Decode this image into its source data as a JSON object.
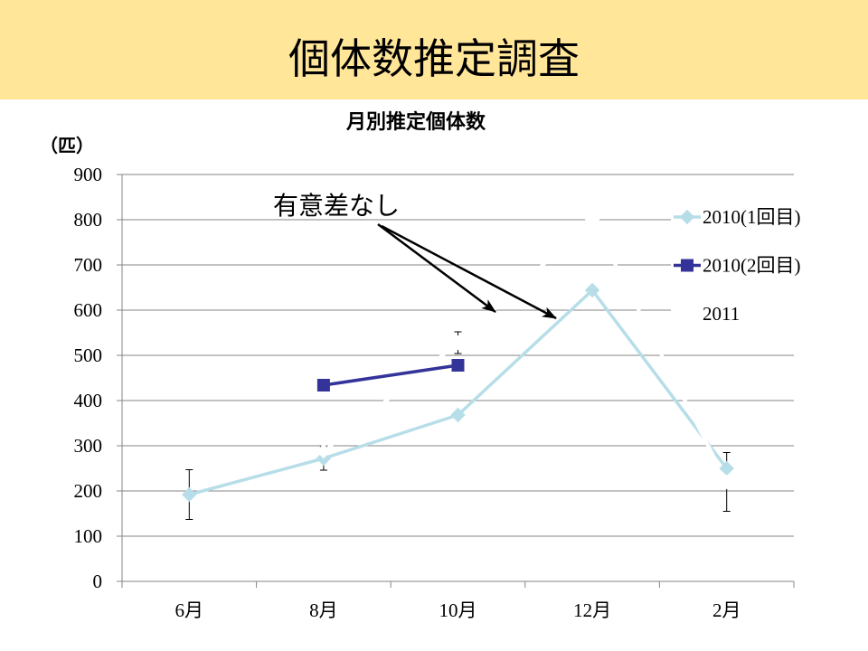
{
  "header": {
    "title": "個体数推定調査"
  },
  "annotation": {
    "text": "有意差なし"
  },
  "colors": {
    "header_bg": "#FFE699",
    "gridline": "#868686",
    "arrow": "#000000"
  },
  "chart_data": {
    "type": "line",
    "title": "月別推定個体数",
    "ylabel": "（匹）",
    "categories": [
      "6月",
      "8月",
      "10月",
      "12月",
      "2月"
    ],
    "ylim": [
      0,
      900
    ],
    "yticks": [
      "0",
      "100",
      "200",
      "300",
      "400",
      "500",
      "600",
      "700",
      "800",
      "900"
    ],
    "grid": true,
    "legend": "right",
    "series": [
      {
        "name": "2010(1回目)",
        "color": "#B7DEE8",
        "marker": "diamond",
        "values": [
          192,
          272,
          368,
          644,
          250
        ],
        "error": [
          55,
          26,
          null,
          null,
          null
        ]
      },
      {
        "name": "2010(2回目)",
        "color": "#333399",
        "marker": "square",
        "values": [
          null,
          434,
          478,
          null,
          null
        ],
        "error": [
          null,
          null,
          null,
          null,
          null
        ]
      },
      {
        "name": "2011",
        "color": "#FFFFFF",
        "marker": "diamond",
        "values": [
          null,
          288,
          528,
          800,
          220
        ],
        "error": [
          null,
          null,
          24,
          null,
          65
        ]
      }
    ]
  }
}
